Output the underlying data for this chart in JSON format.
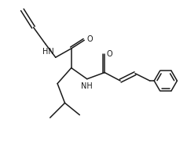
{
  "bg_color": "#ffffff",
  "line_color": "#1a1a1a",
  "line_width": 1.1,
  "font_size": 7.0,
  "figsize": [
    2.38,
    1.85
  ],
  "dpi": 100,
  "xlim": [
    0,
    10
  ],
  "ylim": [
    0,
    7.8
  ]
}
